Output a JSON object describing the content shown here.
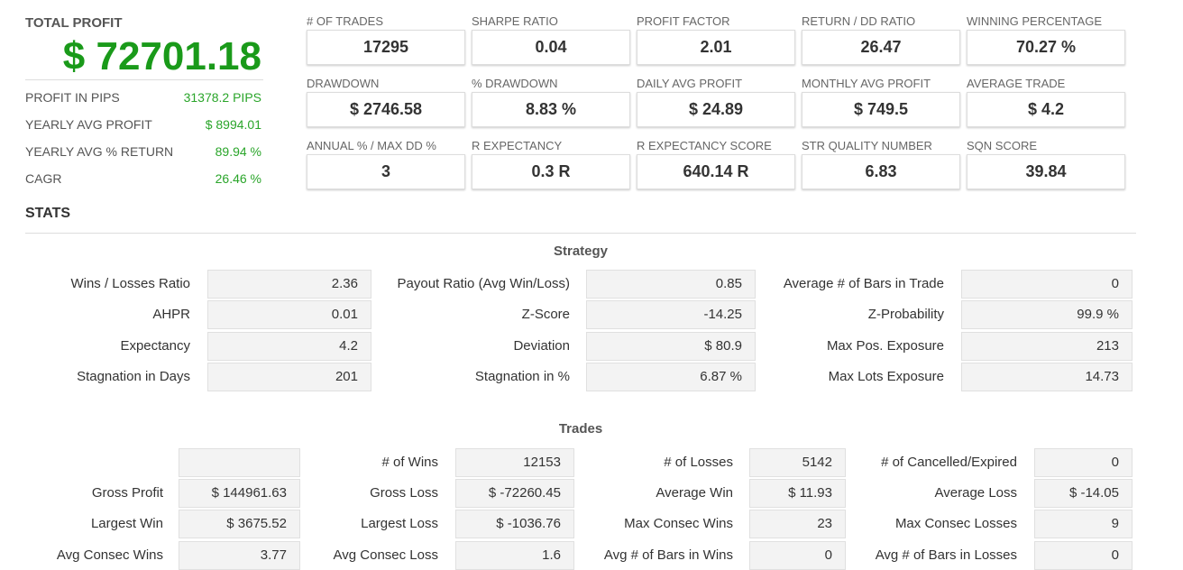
{
  "summary": {
    "title": "TOTAL PROFIT",
    "value": "$ 72701.18",
    "rows": [
      {
        "label": "PROFIT IN PIPS",
        "value": "31378.2 PIPS"
      },
      {
        "label": "YEARLY AVG PROFIT",
        "value": "$ 8994.01"
      },
      {
        "label": "YEARLY AVG % RETURN",
        "value": "89.94 %"
      },
      {
        "label": "CAGR",
        "value": "26.46 %"
      }
    ]
  },
  "metrics": [
    {
      "label": "# OF TRADES",
      "value": "17295"
    },
    {
      "label": "SHARPE RATIO",
      "value": "0.04"
    },
    {
      "label": "PROFIT FACTOR",
      "value": "2.01"
    },
    {
      "label": "RETURN / DD RATIO",
      "value": "26.47"
    },
    {
      "label": "WINNING PERCENTAGE",
      "value": "70.27 %"
    },
    {
      "label": "DRAWDOWN",
      "value": "$ 2746.58"
    },
    {
      "label": "% DRAWDOWN",
      "value": "8.83 %"
    },
    {
      "label": "DAILY AVG PROFIT",
      "value": "$ 24.89"
    },
    {
      "label": "MONTHLY AVG PROFIT",
      "value": "$ 749.5"
    },
    {
      "label": "AVERAGE TRADE",
      "value": "$ 4.2"
    },
    {
      "label": "ANNUAL % / MAX DD %",
      "value": "3"
    },
    {
      "label": "R EXPECTANCY",
      "value": "0.3 R"
    },
    {
      "label": "R EXPECTANCY SCORE",
      "value": "640.14 R"
    },
    {
      "label": "STR QUALITY NUMBER",
      "value": "6.83"
    },
    {
      "label": "SQN SCORE",
      "value": "39.84"
    }
  ],
  "stats_title": "STATS",
  "strategy": {
    "title": "Strategy",
    "rows": [
      [
        {
          "label": "Wins / Losses Ratio",
          "value": "2.36"
        },
        {
          "label": "Payout Ratio (Avg Win/Loss)",
          "value": "0.85"
        },
        {
          "label": "Average # of Bars in Trade",
          "value": "0"
        }
      ],
      [
        {
          "label": "AHPR",
          "value": "0.01"
        },
        {
          "label": "Z-Score",
          "value": "-14.25"
        },
        {
          "label": "Z-Probability",
          "value": "99.9 %"
        }
      ],
      [
        {
          "label": "Expectancy",
          "value": "4.2"
        },
        {
          "label": "Deviation",
          "value": "$ 80.9"
        },
        {
          "label": "Max Pos. Exposure",
          "value": "213"
        }
      ],
      [
        {
          "label": "Stagnation in Days",
          "value": "201"
        },
        {
          "label": "Stagnation in %",
          "value": "6.87 %"
        },
        {
          "label": "Max Lots Exposure",
          "value": "14.73"
        }
      ]
    ]
  },
  "trades": {
    "title": "Trades",
    "rows": [
      [
        {
          "label": null,
          "value": null
        },
        {
          "label": "# of Wins",
          "value": "12153"
        },
        {
          "label": "# of Losses",
          "value": "5142"
        },
        {
          "label": "# of Cancelled/Expired",
          "value": "0"
        }
      ],
      [
        {
          "label": "Gross Profit",
          "value": "$ 144961.63"
        },
        {
          "label": "Gross Loss",
          "value": "$ -72260.45"
        },
        {
          "label": "Average Win",
          "value": "$ 11.93"
        },
        {
          "label": "Average Loss",
          "value": "$ -14.05"
        }
      ],
      [
        {
          "label": "Largest Win",
          "value": "$ 3675.52"
        },
        {
          "label": "Largest Loss",
          "value": "$ -1036.76"
        },
        {
          "label": "Max Consec Wins",
          "value": "23"
        },
        {
          "label": "Max Consec Losses",
          "value": "9"
        }
      ],
      [
        {
          "label": "Avg Consec Wins",
          "value": "3.77"
        },
        {
          "label": "Avg Consec Loss",
          "value": "1.6"
        },
        {
          "label": "Avg # of Bars in Wins",
          "value": "0"
        },
        {
          "label": "Avg # of Bars in Losses",
          "value": "0"
        }
      ]
    ]
  }
}
